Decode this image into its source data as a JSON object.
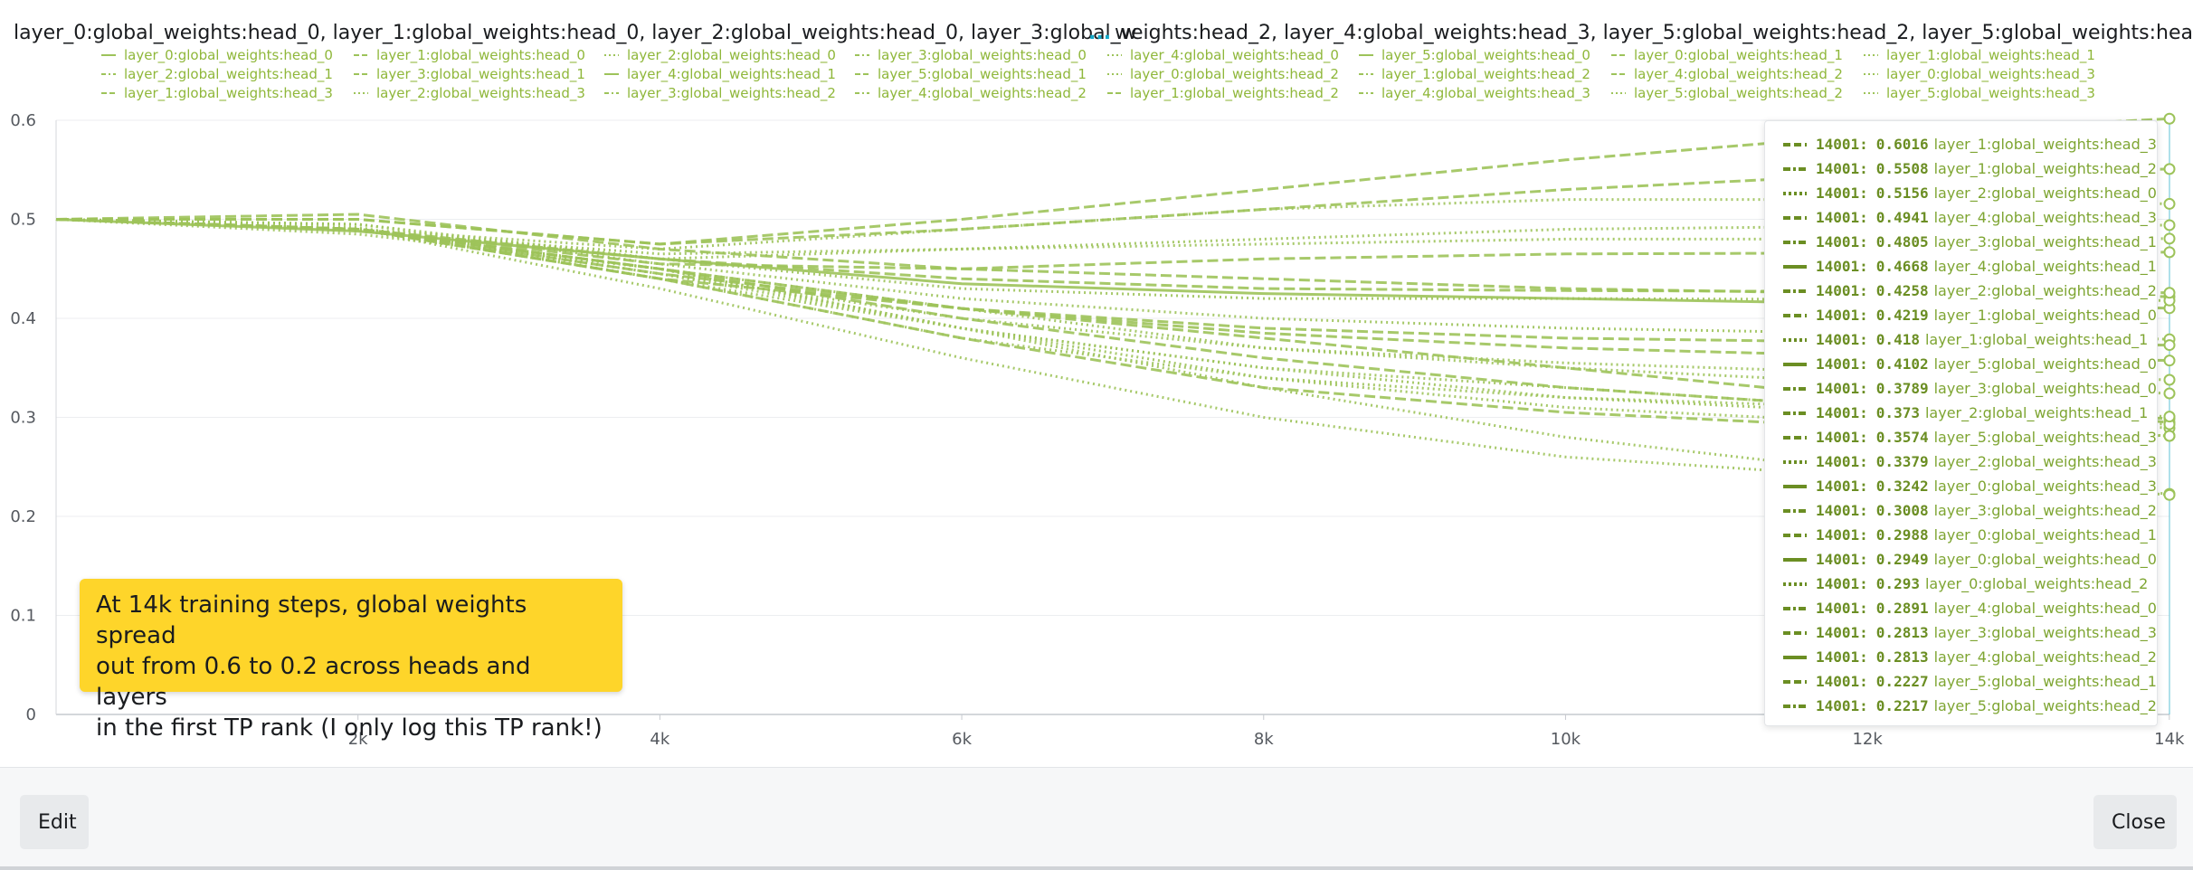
{
  "colors": {
    "series": "#9dc35a",
    "legend_text": "#8fb73a",
    "tooltip_value": "#6b8e23",
    "callout_bg": "#fed52a",
    "title_ellipsis": "#13a9c9"
  },
  "chart_data": {
    "type": "line",
    "title_left": "layer_0:global_weights:head_0, layer_1:global_weights:head_0, layer_2:global_weights:head_0, layer_3:global_w",
    "title_ellipsis": "...",
    "title_right": "weights:head_2, layer_4:global_weights:head_3, layer_5:global_weights:head_2, layer_5:global_weights:head_3",
    "xlabel": "",
    "ylabel": "",
    "x_ticks": [
      "2k",
      "4k",
      "6k",
      "8k",
      "10k",
      "12k",
      "14k"
    ],
    "x_tick_values": [
      2000,
      4000,
      6000,
      8000,
      10000,
      12000,
      14000
    ],
    "y_ticks": [
      "0",
      "0.1",
      "0.2",
      "0.3",
      "0.4",
      "0.5",
      "0.6"
    ],
    "y_tick_values": [
      0,
      0.1,
      0.2,
      0.3,
      0.4,
      0.5,
      0.6
    ],
    "xlim": [
      0,
      14001
    ],
    "ylim": [
      0,
      0.6
    ],
    "grid": true,
    "legend_position": "top",
    "x": [
      0,
      2000,
      4000,
      6000,
      8000,
      10000,
      12000,
      14001
    ],
    "series": [
      {
        "name": "layer_0:global_weights:head_0",
        "dash": "dash",
        "values": [
          0.5,
          0.49,
          0.45,
          0.41,
          0.38,
          0.35,
          0.32,
          0.2949
        ]
      },
      {
        "name": "layer_1:global_weights:head_0",
        "dash": "dash",
        "values": [
          0.5,
          0.505,
          0.47,
          0.45,
          0.44,
          0.43,
          0.425,
          0.4219
        ]
      },
      {
        "name": "layer_2:global_weights:head_0",
        "dash": "dot",
        "values": [
          0.5,
          0.49,
          0.47,
          0.49,
          0.51,
          0.52,
          0.52,
          0.5156
        ]
      },
      {
        "name": "layer_3:global_weights:head_0",
        "dash": "dot",
        "values": [
          0.5,
          0.495,
          0.455,
          0.42,
          0.4,
          0.39,
          0.385,
          0.3789
        ]
      },
      {
        "name": "layer_4:global_weights:head_0",
        "dash": "dot",
        "values": [
          0.5,
          0.49,
          0.45,
          0.39,
          0.35,
          0.33,
          0.31,
          0.2891
        ]
      },
      {
        "name": "layer_5:global_weights:head_0",
        "dash": "solid",
        "values": [
          0.5,
          0.488,
          0.46,
          0.435,
          0.425,
          0.42,
          0.415,
          0.4102
        ]
      },
      {
        "name": "layer_0:global_weights:head_1",
        "dash": "dash",
        "values": [
          0.5,
          0.49,
          0.45,
          0.4,
          0.36,
          0.33,
          0.31,
          0.2988
        ]
      },
      {
        "name": "layer_1:global_weights:head_1",
        "dash": "dot",
        "values": [
          0.5,
          0.495,
          0.46,
          0.43,
          0.42,
          0.42,
          0.419,
          0.418
        ]
      },
      {
        "name": "layer_2:global_weights:head_1",
        "dash": "dash",
        "values": [
          0.5,
          0.49,
          0.44,
          0.41,
          0.39,
          0.38,
          0.376,
          0.373
        ]
      },
      {
        "name": "layer_3:global_weights:head_1",
        "dash": "dot",
        "values": [
          0.5,
          0.488,
          0.465,
          0.47,
          0.475,
          0.48,
          0.48,
          0.4805
        ]
      },
      {
        "name": "layer_4:global_weights:head_1",
        "dash": "dash",
        "values": [
          0.5,
          0.49,
          0.455,
          0.45,
          0.46,
          0.465,
          0.466,
          0.4668
        ]
      },
      {
        "name": "layer_5:global_weights:head_1",
        "dash": "dot",
        "values": [
          0.5,
          0.49,
          0.43,
          0.36,
          0.3,
          0.26,
          0.24,
          0.2227
        ]
      },
      {
        "name": "layer_0:global_weights:head_2",
        "dash": "dot",
        "values": [
          0.5,
          0.492,
          0.44,
          0.39,
          0.35,
          0.32,
          0.305,
          0.293
        ]
      },
      {
        "name": "layer_1:global_weights:head_2",
        "dash": "dash",
        "values": [
          0.5,
          0.5,
          0.475,
          0.49,
          0.51,
          0.53,
          0.545,
          0.5508
        ]
      },
      {
        "name": "layer_2:global_weights:head_2",
        "dash": "dash",
        "values": [
          0.5,
          0.49,
          0.46,
          0.44,
          0.43,
          0.428,
          0.427,
          0.4258
        ]
      },
      {
        "name": "layer_3:global_weights:head_2",
        "dash": "dot",
        "values": [
          0.5,
          0.49,
          0.44,
          0.38,
          0.34,
          0.32,
          0.31,
          0.3008
        ]
      },
      {
        "name": "layer_4:global_weights:head_2",
        "dash": "dot",
        "values": [
          0.5,
          0.49,
          0.445,
          0.39,
          0.34,
          0.31,
          0.295,
          0.2813
        ]
      },
      {
        "name": "layer_5:global_weights:head_2",
        "dash": "dot",
        "values": [
          0.5,
          0.485,
          0.45,
          0.39,
          0.33,
          0.28,
          0.245,
          0.2217
        ]
      },
      {
        "name": "layer_0:global_weights:head_3",
        "dash": "dot",
        "values": [
          0.5,
          0.49,
          0.45,
          0.41,
          0.37,
          0.35,
          0.335,
          0.3242
        ]
      },
      {
        "name": "layer_1:global_weights:head_3",
        "dash": "dash",
        "values": [
          0.5,
          0.5,
          0.475,
          0.5,
          0.53,
          0.56,
          0.585,
          0.6016
        ]
      },
      {
        "name": "layer_2:global_weights:head_3",
        "dash": "dot",
        "values": [
          0.5,
          0.49,
          0.445,
          0.4,
          0.37,
          0.355,
          0.345,
          0.3379
        ]
      },
      {
        "name": "layer_3:global_weights:head_3",
        "dash": "dash",
        "values": [
          0.5,
          0.49,
          0.44,
          0.38,
          0.33,
          0.305,
          0.29,
          0.2813
        ]
      },
      {
        "name": "layer_4:global_weights:head_3",
        "dash": "dot",
        "values": [
          0.5,
          0.49,
          0.46,
          0.47,
          0.48,
          0.49,
          0.493,
          0.4941
        ]
      },
      {
        "name": "layer_5:global_weights:head_3",
        "dash": "dash",
        "values": [
          0.5,
          0.49,
          0.445,
          0.41,
          0.385,
          0.37,
          0.362,
          0.3574
        ]
      }
    ],
    "legend_entries": [
      {
        "name": "layer_0:global_weights:head_0",
        "dash": "solid"
      },
      {
        "name": "layer_1:global_weights:head_0",
        "dash": "dash"
      },
      {
        "name": "layer_2:global_weights:head_0",
        "dash": "dot"
      },
      {
        "name": "layer_3:global_weights:head_0",
        "dash": "dashdot"
      },
      {
        "name": "layer_4:global_weights:head_0",
        "dash": "dot"
      },
      {
        "name": "layer_5:global_weights:head_0",
        "dash": "solid"
      },
      {
        "name": "layer_0:global_weights:head_1",
        "dash": "dash"
      },
      {
        "name": "layer_1:global_weights:head_1",
        "dash": "dot"
      },
      {
        "name": "layer_2:global_weights:head_1",
        "dash": "dashdot"
      },
      {
        "name": "layer_3:global_weights:head_1",
        "dash": "dash"
      },
      {
        "name": "layer_4:global_weights:head_1",
        "dash": "solid"
      },
      {
        "name": "layer_5:global_weights:head_1",
        "dash": "dash"
      },
      {
        "name": "layer_0:global_weights:head_2",
        "dash": "dot"
      },
      {
        "name": "layer_1:global_weights:head_2",
        "dash": "dashdot"
      },
      {
        "name": "layer_4:global_weights:head_2",
        "dash": "dash"
      },
      {
        "name": "layer_0:global_weights:head_3",
        "dash": "dot"
      },
      {
        "name": "layer_1:global_weights:head_3",
        "dash": "dash"
      },
      {
        "name": "layer_2:global_weights:head_3",
        "dash": "dot"
      },
      {
        "name": "layer_3:global_weights:head_2",
        "dash": "dashdot"
      },
      {
        "name": "layer_4:global_weights:head_2",
        "dash": "dashdot"
      },
      {
        "name": "layer_1:global_weights:head_2",
        "dash": "dash"
      },
      {
        "name": "layer_4:global_weights:head_3",
        "dash": "dashdot"
      },
      {
        "name": "layer_5:global_weights:head_2",
        "dash": "dot"
      },
      {
        "name": "layer_5:global_weights:head_3",
        "dash": "dot"
      }
    ]
  },
  "tooltip": {
    "rows": [
      {
        "step": "14001:",
        "value": "0.6016",
        "name": "layer_1:global_weights:head_3",
        "dash": "dash"
      },
      {
        "step": "14001:",
        "value": "0.5508",
        "name": "layer_1:global_weights:head_2",
        "dash": "dashdot"
      },
      {
        "step": "14001:",
        "value": "0.5156",
        "name": "layer_2:global_weights:head_0",
        "dash": "dot"
      },
      {
        "step": "14001:",
        "value": "0.4941",
        "name": "layer_4:global_weights:head_3",
        "dash": "dash"
      },
      {
        "step": "14001:",
        "value": "0.4805",
        "name": "layer_3:global_weights:head_1",
        "dash": "dashdot"
      },
      {
        "step": "14001:",
        "value": "0.4668",
        "name": "layer_4:global_weights:head_1",
        "dash": "solid"
      },
      {
        "step": "14001:",
        "value": "0.4258",
        "name": "layer_2:global_weights:head_2",
        "dash": "dashdot"
      },
      {
        "step": "14001:",
        "value": "0.4219",
        "name": "layer_1:global_weights:head_0",
        "dash": "dash"
      },
      {
        "step": "14001:",
        "value": "0.418",
        "name": "layer_1:global_weights:head_1",
        "dash": "dot"
      },
      {
        "step": "14001:",
        "value": "0.4102",
        "name": "layer_5:global_weights:head_0",
        "dash": "solid"
      },
      {
        "step": "14001:",
        "value": "0.3789",
        "name": "layer_3:global_weights:head_0",
        "dash": "dashdot"
      },
      {
        "step": "14001:",
        "value": "0.373",
        "name": "layer_2:global_weights:head_1",
        "dash": "dashdot"
      },
      {
        "step": "14001:",
        "value": "0.3574",
        "name": "layer_5:global_weights:head_3",
        "dash": "dash"
      },
      {
        "step": "14001:",
        "value": "0.3379",
        "name": "layer_2:global_weights:head_3",
        "dash": "dot"
      },
      {
        "step": "14001:",
        "value": "0.3242",
        "name": "layer_0:global_weights:head_3",
        "dash": "solid"
      },
      {
        "step": "14001:",
        "value": "0.3008",
        "name": "layer_3:global_weights:head_2",
        "dash": "dashdot"
      },
      {
        "step": "14001:",
        "value": "0.2988",
        "name": "layer_0:global_weights:head_1",
        "dash": "dash"
      },
      {
        "step": "14001:",
        "value": "0.2949",
        "name": "layer_0:global_weights:head_0",
        "dash": "solid"
      },
      {
        "step": "14001:",
        "value": "0.293",
        "name": "layer_0:global_weights:head_2",
        "dash": "dot"
      },
      {
        "step": "14001:",
        "value": "0.2891",
        "name": "layer_4:global_weights:head_0",
        "dash": "dashdot"
      },
      {
        "step": "14001:",
        "value": "0.2813",
        "name": "layer_3:global_weights:head_3",
        "dash": "dash"
      },
      {
        "step": "14001:",
        "value": "0.2813",
        "name": "layer_4:global_weights:head_2",
        "dash": "solid"
      },
      {
        "step": "14001:",
        "value": "0.2227",
        "name": "layer_5:global_weights:head_1",
        "dash": "dash"
      },
      {
        "step": "14001:",
        "value": "0.2217",
        "name": "layer_5:global_weights:head_2",
        "dash": "dashdot"
      }
    ]
  },
  "annotation": {
    "lines": [
      "At 14k training steps, global weights spread",
      "out from 0.6 to 0.2 across heads and layers",
      "in the first TP rank (I only log this TP rank!)"
    ]
  },
  "footer": {
    "edit_label": "Edit",
    "close_label": "Close"
  }
}
